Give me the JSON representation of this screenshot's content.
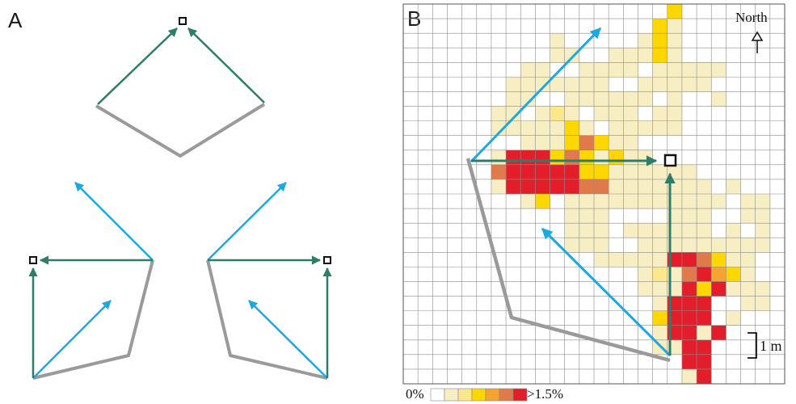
{
  "panels": {
    "a_label": "A",
    "b_label": "B"
  },
  "compass": {
    "label": "North"
  },
  "scale_bar": {
    "label": "1 m"
  },
  "legend": {
    "min_label": "0%",
    "max_label": ">1.5%",
    "colors": [
      "#ffffff",
      "#f7eec4",
      "#fbe88c",
      "#ffd700",
      "#f5a331",
      "#e07a4a",
      "#e31e2a"
    ]
  },
  "colors": {
    "path_gray": "#9a9a9a",
    "arrow_teal": "#2e7d6a",
    "arrow_blue": "#1ea8e0",
    "grid_line": "#8c8c8c"
  }
}
